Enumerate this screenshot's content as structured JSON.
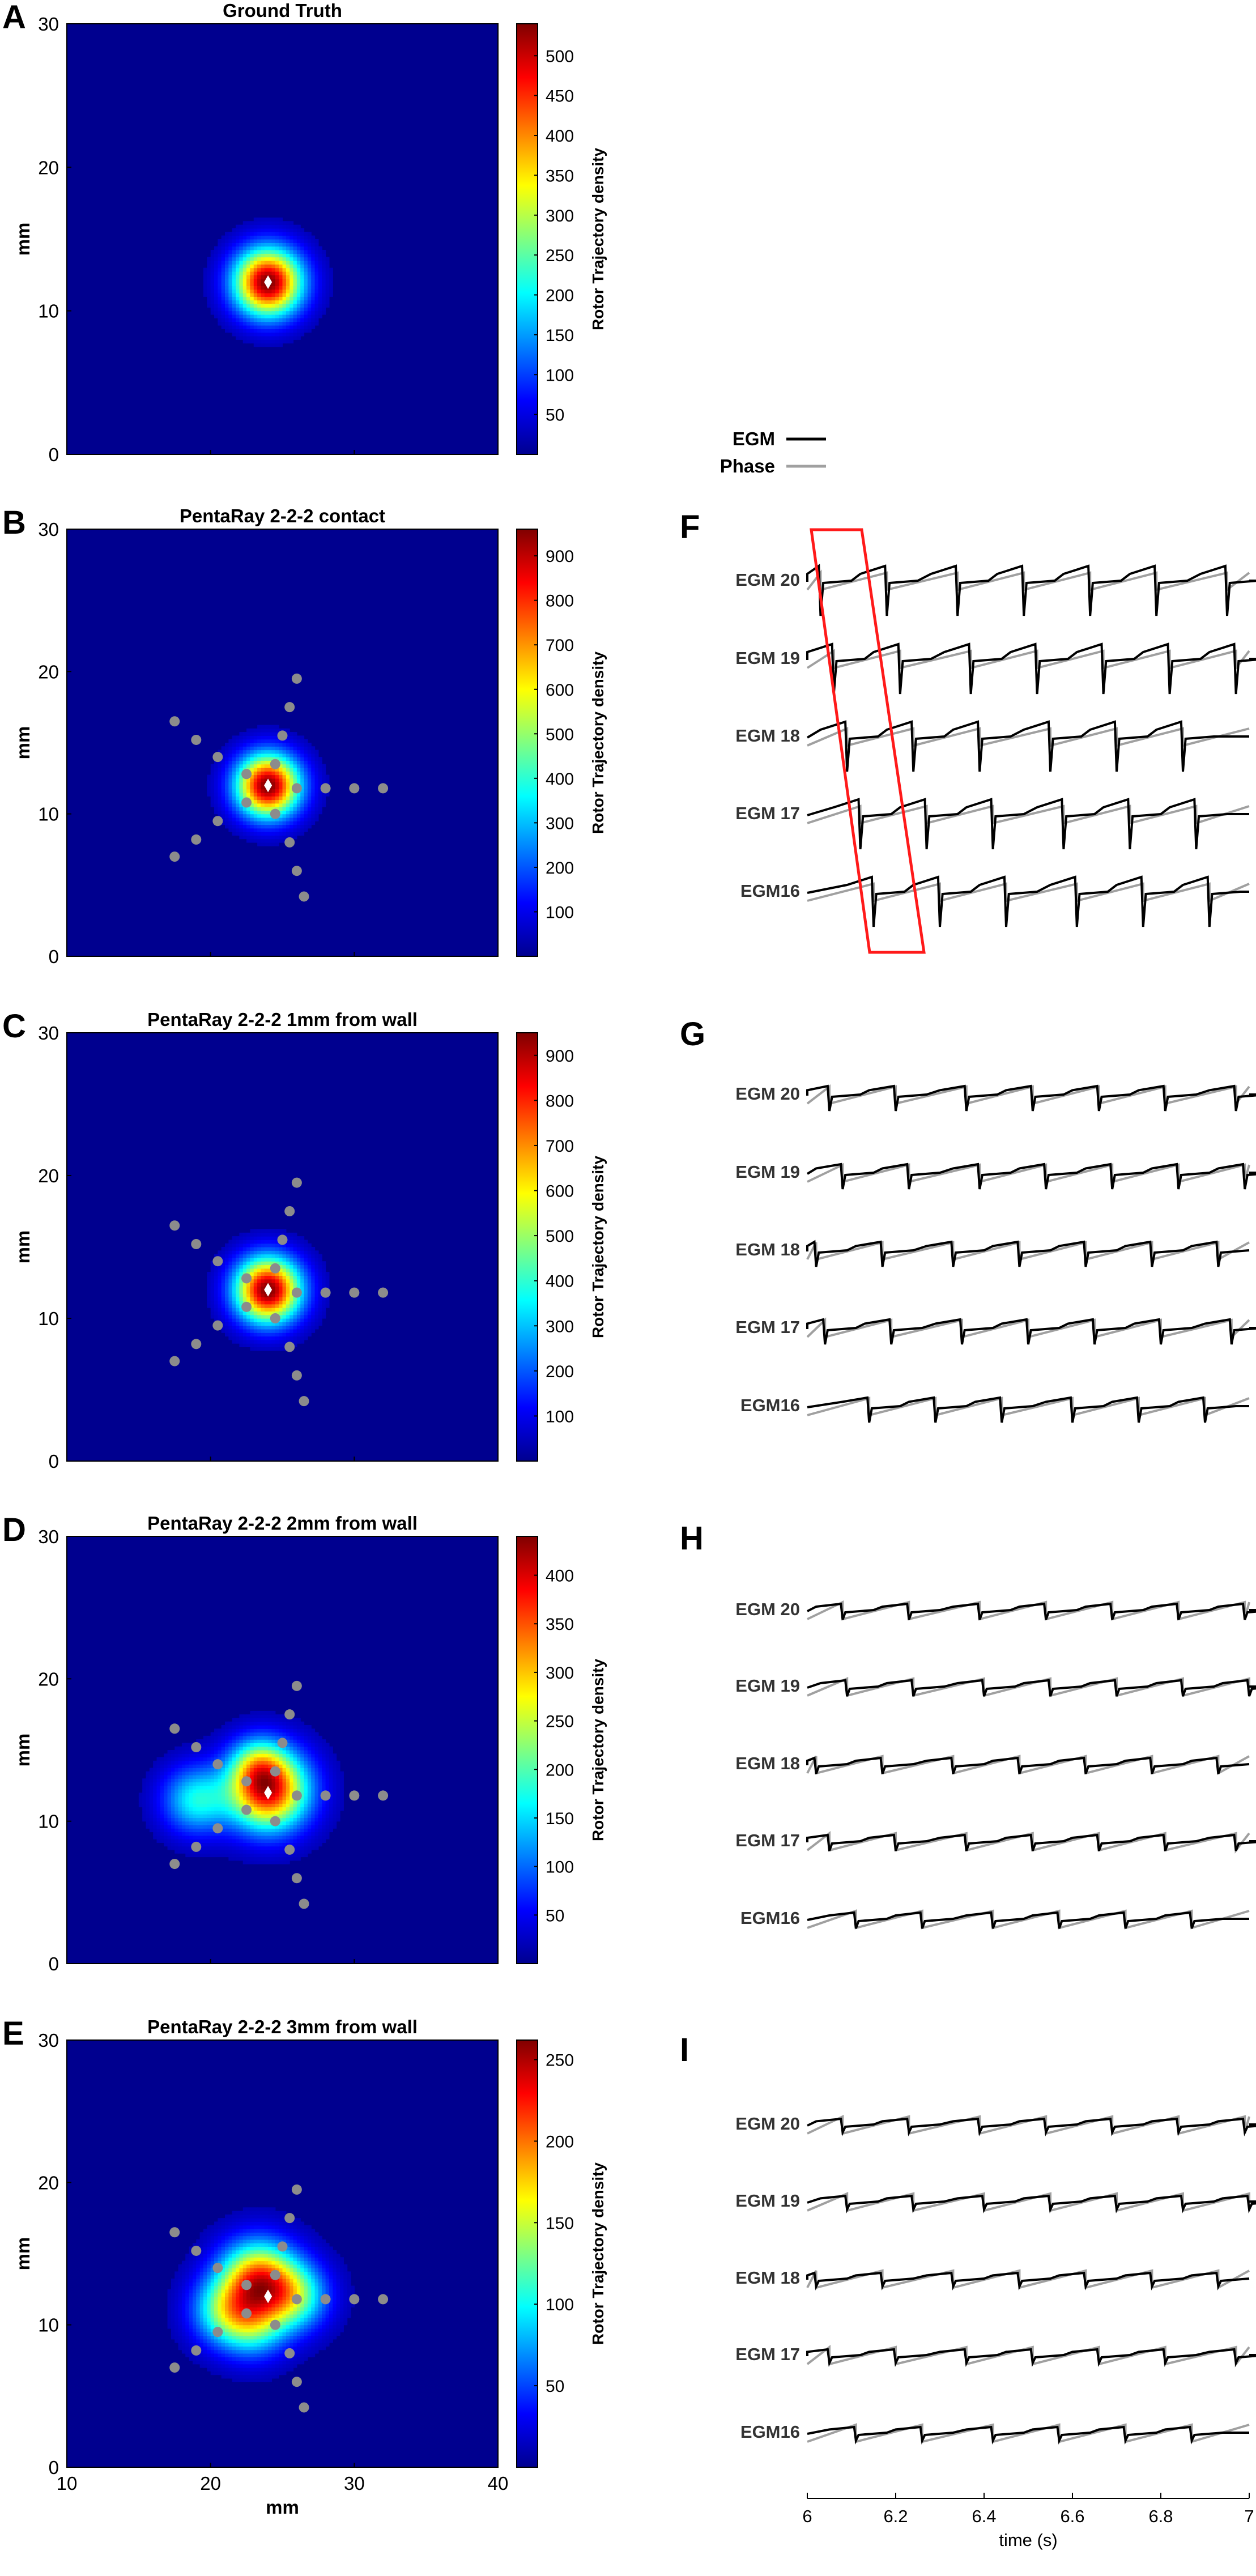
{
  "figure": {
    "panel_letters": [
      "A",
      "B",
      "C",
      "D",
      "E",
      "F",
      "G",
      "H",
      "I"
    ]
  },
  "chart_data": [
    {
      "type": "heatmap",
      "letter": "A",
      "title": "Ground Truth",
      "xlim": [
        10,
        40
      ],
      "ylim": [
        0,
        30
      ],
      "yticks": [
        0,
        10,
        20,
        30
      ],
      "xticks": [
        10,
        20,
        30,
        40
      ],
      "show_xticks": false,
      "ylabel": "mm",
      "xlabel": "",
      "colorbar": {
        "label": "Rotor Trajectory density",
        "min": 0,
        "max": 540,
        "ticks": [
          50,
          100,
          150,
          200,
          250,
          300,
          350,
          400,
          450,
          500
        ]
      },
      "colormap": "jet",
      "background": "#00008f",
      "density_blobs": [
        {
          "x": 24,
          "y": 12,
          "sigma": 1.6,
          "weight": 1.0
        }
      ],
      "rotor_center": {
        "x": 24,
        "y": 12
      },
      "electrodes": []
    },
    {
      "type": "heatmap",
      "letter": "B",
      "title": "PentaRay 2-2-2 contact",
      "xlim": [
        10,
        40
      ],
      "ylim": [
        0,
        30
      ],
      "yticks": [
        0,
        10,
        20,
        30
      ],
      "xticks": [
        10,
        20,
        30,
        40
      ],
      "show_xticks": false,
      "ylabel": "mm",
      "xlabel": "",
      "colorbar": {
        "label": "Rotor Trajectory density",
        "min": 0,
        "max": 960,
        "ticks": [
          100,
          200,
          300,
          400,
          500,
          600,
          700,
          800,
          900
        ]
      },
      "colormap": "jet",
      "background": "#00008f",
      "density_blobs": [
        {
          "x": 24,
          "y": 12,
          "sigma": 1.5,
          "weight": 1.0
        }
      ],
      "rotor_center": {
        "x": 24,
        "y": 12
      },
      "electrodes": [
        [
          26,
          19.5
        ],
        [
          25.5,
          17.5
        ],
        [
          25,
          15.5
        ],
        [
          24.5,
          13.5
        ],
        [
          26,
          11.8
        ],
        [
          28,
          11.8
        ],
        [
          30,
          11.8
        ],
        [
          32,
          11.8
        ],
        [
          17.5,
          16.5
        ],
        [
          19,
          15.2
        ],
        [
          20.5,
          14
        ],
        [
          22.5,
          12.8
        ],
        [
          17.5,
          7
        ],
        [
          19,
          8.2
        ],
        [
          20.5,
          9.5
        ],
        [
          22.5,
          10.8
        ],
        [
          26.5,
          4.2
        ],
        [
          26,
          6
        ],
        [
          25.5,
          8
        ],
        [
          24.5,
          10
        ]
      ]
    },
    {
      "type": "heatmap",
      "letter": "C",
      "title": "PentaRay 2-2-2 1mm from wall",
      "xlim": [
        10,
        40
      ],
      "ylim": [
        0,
        30
      ],
      "yticks": [
        0,
        10,
        20,
        30
      ],
      "xticks": [
        10,
        20,
        30,
        40
      ],
      "show_xticks": false,
      "ylabel": "mm",
      "xlabel": "",
      "colorbar": {
        "label": "Rotor Trajectory density",
        "min": 0,
        "max": 950,
        "ticks": [
          100,
          200,
          300,
          400,
          500,
          600,
          700,
          800,
          900
        ]
      },
      "colormap": "jet",
      "background": "#00008f",
      "density_blobs": [
        {
          "x": 24,
          "y": 12,
          "sigma": 1.55,
          "weight": 1.0
        }
      ],
      "rotor_center": {
        "x": 24,
        "y": 12
      },
      "electrodes": [
        [
          26,
          19.5
        ],
        [
          25.5,
          17.5
        ],
        [
          25,
          15.5
        ],
        [
          24.5,
          13.5
        ],
        [
          26,
          11.8
        ],
        [
          28,
          11.8
        ],
        [
          30,
          11.8
        ],
        [
          32,
          11.8
        ],
        [
          17.5,
          16.5
        ],
        [
          19,
          15.2
        ],
        [
          20.5,
          14
        ],
        [
          22.5,
          12.8
        ],
        [
          17.5,
          7
        ],
        [
          19,
          8.2
        ],
        [
          20.5,
          9.5
        ],
        [
          22.5,
          10.8
        ],
        [
          26.5,
          4.2
        ],
        [
          26,
          6
        ],
        [
          25.5,
          8
        ],
        [
          24.5,
          10
        ]
      ]
    },
    {
      "type": "heatmap",
      "letter": "D",
      "title": "PentaRay 2-2-2 2mm from wall",
      "xlim": [
        10,
        40
      ],
      "ylim": [
        0,
        30
      ],
      "yticks": [
        0,
        10,
        20,
        30
      ],
      "xticks": [
        10,
        20,
        30,
        40
      ],
      "show_xticks": false,
      "ylabel": "mm",
      "xlabel": "",
      "colorbar": {
        "label": "Rotor Trajectory density",
        "min": 0,
        "max": 440,
        "ticks": [
          50,
          100,
          150,
          200,
          250,
          300,
          350,
          400
        ]
      },
      "colormap": "jet",
      "background": "#00008f",
      "density_blobs": [
        {
          "x": 24,
          "y": 12.2,
          "sigma": 1.9,
          "weight": 1.0
        },
        {
          "x": 23.3,
          "y": 14,
          "sigma": 1.3,
          "weight": 0.3
        },
        {
          "x": 19,
          "y": 11.5,
          "sigma": 1.6,
          "weight": 0.4
        }
      ],
      "rotor_center": {
        "x": 24,
        "y": 12
      },
      "electrodes": [
        [
          26,
          19.5
        ],
        [
          25.5,
          17.5
        ],
        [
          25,
          15.5
        ],
        [
          24.5,
          13.5
        ],
        [
          26,
          11.8
        ],
        [
          28,
          11.8
        ],
        [
          30,
          11.8
        ],
        [
          32,
          11.8
        ],
        [
          17.5,
          16.5
        ],
        [
          19,
          15.2
        ],
        [
          20.5,
          14
        ],
        [
          22.5,
          12.8
        ],
        [
          17.5,
          7
        ],
        [
          19,
          8.2
        ],
        [
          20.5,
          9.5
        ],
        [
          22.5,
          10.8
        ],
        [
          26.5,
          4.2
        ],
        [
          26,
          6
        ],
        [
          25.5,
          8
        ],
        [
          24.5,
          10
        ]
      ]
    },
    {
      "type": "heatmap",
      "letter": "E",
      "title": "PentaRay 2-2-2 3mm from wall",
      "xlim": [
        10,
        40
      ],
      "ylim": [
        0,
        30
      ],
      "yticks": [
        0,
        10,
        20,
        30
      ],
      "xticks": [
        10,
        20,
        30,
        40
      ],
      "show_xticks": true,
      "ylabel": "mm",
      "xlabel": "mm",
      "colorbar": {
        "label": "Rotor Trajectory density",
        "min": 0,
        "max": 262,
        "ticks": [
          50,
          100,
          150,
          200,
          250
        ]
      },
      "colormap": "jet",
      "background": "#00008f",
      "density_blobs": [
        {
          "x": 23.3,
          "y": 13.2,
          "sigma": 1.8,
          "weight": 1.0
        },
        {
          "x": 25.8,
          "y": 12,
          "sigma": 1.6,
          "weight": 0.55
        },
        {
          "x": 21,
          "y": 11,
          "sigma": 1.6,
          "weight": 0.5
        },
        {
          "x": 23,
          "y": 10,
          "sigma": 1.6,
          "weight": 0.45
        }
      ],
      "rotor_center": {
        "x": 24,
        "y": 12
      },
      "electrodes": [
        [
          26,
          19.5
        ],
        [
          25.5,
          17.5
        ],
        [
          25,
          15.5
        ],
        [
          24.5,
          13.5
        ],
        [
          26,
          11.8
        ],
        [
          28,
          11.8
        ],
        [
          30,
          11.8
        ],
        [
          32,
          11.8
        ],
        [
          17.5,
          16.5
        ],
        [
          19,
          15.2
        ],
        [
          20.5,
          14
        ],
        [
          22.5,
          12.8
        ],
        [
          17.5,
          7
        ],
        [
          19,
          8.2
        ],
        [
          20.5,
          9.5
        ],
        [
          22.5,
          10.8
        ],
        [
          26.5,
          4.2
        ],
        [
          26,
          6
        ],
        [
          25.5,
          8
        ],
        [
          24.5,
          10
        ]
      ]
    },
    {
      "type": "line",
      "letter": "F",
      "channels": [
        "EGM 20",
        "EGM 19",
        "EGM 18",
        "EGM 17",
        "EGM16"
      ],
      "beat_times": [
        [
          6.03,
          6.18,
          6.34,
          6.49,
          6.64,
          6.79,
          6.95
        ],
        [
          6.06,
          6.21,
          6.37,
          6.52,
          6.67,
          6.82,
          6.97
        ],
        [
          6.09,
          6.24,
          6.39,
          6.55,
          6.7,
          6.85
        ],
        [
          6.12,
          6.27,
          6.42,
          6.58,
          6.73,
          6.88
        ],
        [
          6.15,
          6.3,
          6.45,
          6.61,
          6.76,
          6.91
        ]
      ],
      "amplitude": 1.0,
      "highlight_box": true
    },
    {
      "type": "line",
      "letter": "G",
      "channels": [
        "EGM 20",
        "EGM 19",
        "EGM 18",
        "EGM 17",
        "EGM16"
      ],
      "beat_times": [
        [
          6.05,
          6.2,
          6.36,
          6.51,
          6.66,
          6.81,
          6.97
        ],
        [
          6.08,
          6.23,
          6.39,
          6.54,
          6.69,
          6.84,
          6.99
        ],
        [
          6.02,
          6.17,
          6.33,
          6.48,
          6.63,
          6.78,
          6.93
        ],
        [
          6.04,
          6.19,
          6.35,
          6.5,
          6.65,
          6.8,
          6.96
        ],
        [
          6.14,
          6.29,
          6.44,
          6.6,
          6.75,
          6.9
        ]
      ],
      "amplitude": 0.45,
      "highlight_box": false
    },
    {
      "type": "line",
      "letter": "H",
      "channels": [
        "EGM 20",
        "EGM 19",
        "EGM 18",
        "EGM 17",
        "EGM16"
      ],
      "beat_times": [
        [
          6.08,
          6.23,
          6.39,
          6.54,
          6.69,
          6.84,
          6.99
        ],
        [
          6.09,
          6.24,
          6.4,
          6.55,
          6.7,
          6.85,
          7.0
        ],
        [
          6.02,
          6.17,
          6.33,
          6.48,
          6.63,
          6.78,
          6.93
        ],
        [
          6.05,
          6.2,
          6.36,
          6.51,
          6.66,
          6.81,
          6.97
        ],
        [
          6.11,
          6.26,
          6.42,
          6.57,
          6.72,
          6.87
        ]
      ],
      "amplitude": 0.25,
      "highlight_box": false
    },
    {
      "type": "line",
      "letter": "I",
      "channels": [
        "EGM 20",
        "EGM 19",
        "EGM 18",
        "EGM 17",
        "EGM16"
      ],
      "beat_times": [
        [
          6.08,
          6.23,
          6.39,
          6.54,
          6.69,
          6.84,
          6.99
        ],
        [
          6.09,
          6.24,
          6.4,
          6.55,
          6.7,
          6.85,
          7.0
        ],
        [
          6.02,
          6.17,
          6.33,
          6.48,
          6.63,
          6.78,
          6.93
        ],
        [
          6.05,
          6.2,
          6.36,
          6.51,
          6.66,
          6.81,
          6.97
        ],
        [
          6.11,
          6.26,
          6.42,
          6.57,
          6.72,
          6.87
        ]
      ],
      "amplitude": 0.2,
      "highlight_box": false,
      "xaxis": {
        "label": "time (s)",
        "min": 6,
        "max": 7,
        "ticks": [
          "6",
          "6.2",
          "6.4",
          "6.6",
          "6.8",
          "7"
        ]
      }
    }
  ],
  "legend": {
    "entries": [
      {
        "label": "EGM",
        "color": "#000000"
      },
      {
        "label": "Phase",
        "color": "#a0a0a0"
      }
    ]
  }
}
